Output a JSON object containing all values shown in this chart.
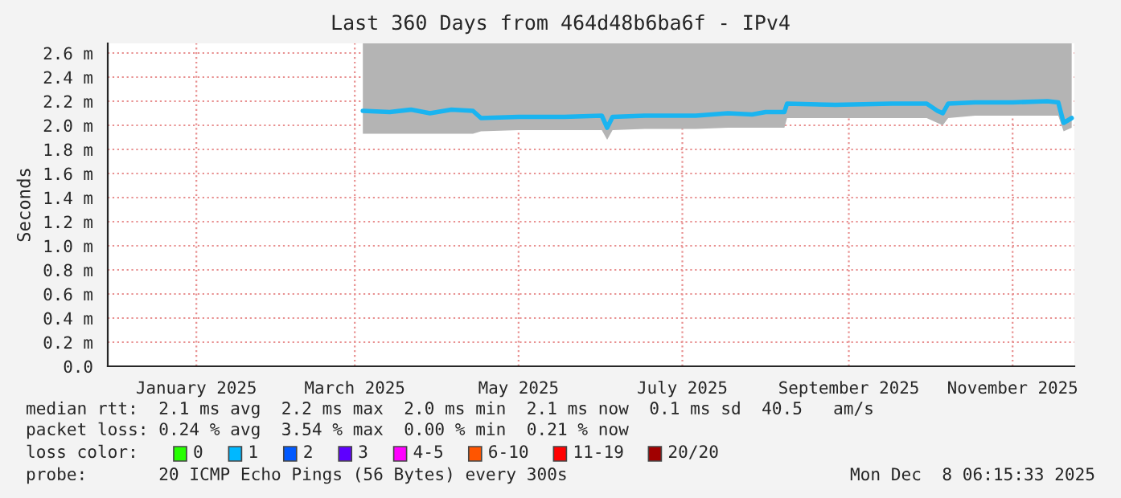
{
  "chart_data": {
    "type": "line",
    "title": "Last 360 Days from 464d48b6ba6f - IPv4",
    "ylabel": "Seconds",
    "xlim": [
      "2024-12-13",
      "2025-12-08"
    ],
    "xticks": [
      {
        "value": "2025-01-15",
        "label": "January 2025"
      },
      {
        "value": "2025-03-15",
        "label": "March 2025"
      },
      {
        "value": "2025-05-15",
        "label": "May 2025"
      },
      {
        "value": "2025-07-15",
        "label": "July 2025"
      },
      {
        "value": "2025-09-15",
        "label": "September 2025"
      },
      {
        "value": "2025-11-15",
        "label": "November 2025"
      }
    ],
    "ylim": [
      0,
      2.68
    ],
    "yticks": [
      {
        "value": 0,
        "label": "0.0"
      },
      {
        "value": 0.2,
        "label": "0.2 m"
      },
      {
        "value": 0.4,
        "label": "0.4 m"
      },
      {
        "value": 0.6,
        "label": "0.6 m"
      },
      {
        "value": 0.8,
        "label": "0.8 m"
      },
      {
        "value": 1.0,
        "label": "1.0 m"
      },
      {
        "value": 1.2,
        "label": "1.2 m"
      },
      {
        "value": 1.4,
        "label": "1.4 m"
      },
      {
        "value": 1.6,
        "label": "1.6 m"
      },
      {
        "value": 1.8,
        "label": "1.8 m"
      },
      {
        "value": 2.0,
        "label": "2.0 m"
      },
      {
        "value": 2.2,
        "label": "2.2 m"
      },
      {
        "value": 2.4,
        "label": "2.4 m"
      },
      {
        "value": 2.6,
        "label": "2.6 m"
      }
    ],
    "grid": true,
    "series": [
      {
        "color": "#1ab4f0",
        "x": [
          "2025-03-18",
          "2025-03-28",
          "2025-04-05",
          "2025-04-12",
          "2025-04-20",
          "2025-04-28",
          "2025-05-01",
          "2025-05-15",
          "2025-06-01",
          "2025-06-15",
          "2025-06-17",
          "2025-06-19",
          "2025-07-01",
          "2025-07-20",
          "2025-08-01",
          "2025-08-10",
          "2025-08-15",
          "2025-08-22",
          "2025-08-23",
          "2025-09-10",
          "2025-10-01",
          "2025-10-14",
          "2025-10-18",
          "2025-10-20",
          "2025-10-22",
          "2025-11-01",
          "2025-11-15",
          "2025-11-28",
          "2025-12-02",
          "2025-12-04",
          "2025-12-07"
        ],
        "values": [
          2.12,
          2.11,
          2.13,
          2.1,
          2.13,
          2.12,
          2.06,
          2.07,
          2.07,
          2.08,
          1.98,
          2.07,
          2.08,
          2.08,
          2.1,
          2.09,
          2.11,
          2.11,
          2.18,
          2.17,
          2.18,
          2.18,
          2.12,
          2.1,
          2.18,
          2.19,
          2.19,
          2.2,
          2.19,
          2.02,
          2.06
        ],
        "lower": [
          1.93,
          1.93,
          1.93,
          1.93,
          1.93,
          1.93,
          1.95,
          1.96,
          1.96,
          1.96,
          1.88,
          1.96,
          1.97,
          1.97,
          1.98,
          1.98,
          1.98,
          1.98,
          2.06,
          2.06,
          2.06,
          2.06,
          2.02,
          2.0,
          2.06,
          2.08,
          2.08,
          2.08,
          2.08,
          1.95,
          1.98
        ],
        "upper": [
          2.68,
          2.68,
          2.68,
          2.68,
          2.68,
          2.68,
          2.68,
          2.68,
          2.68,
          2.68,
          2.68,
          2.68,
          2.68,
          2.68,
          2.68,
          2.68,
          2.68,
          2.68,
          2.68,
          2.68,
          2.68,
          2.68,
          2.68,
          2.68,
          2.68,
          2.68,
          2.68,
          2.68,
          2.68,
          2.68,
          2.68
        ]
      }
    ],
    "annotations": [
      "median rtt:  2.1 ms avg  2.2 ms max  2.0 ms min  2.1 ms now  0.1 ms sd  40.5   am/s",
      "packet loss: 0.24 % avg  3.54 % max  0.00 % min  0.21 % now",
      "loss color:",
      "0",
      "1",
      "2",
      "3",
      "4-5",
      "6-10",
      "11-19",
      "20/20",
      "probe:       20 ICMP Echo Pings (56 Bytes) every 300s",
      "Mon Dec  8 06:15:33 2025"
    ]
  }
}
